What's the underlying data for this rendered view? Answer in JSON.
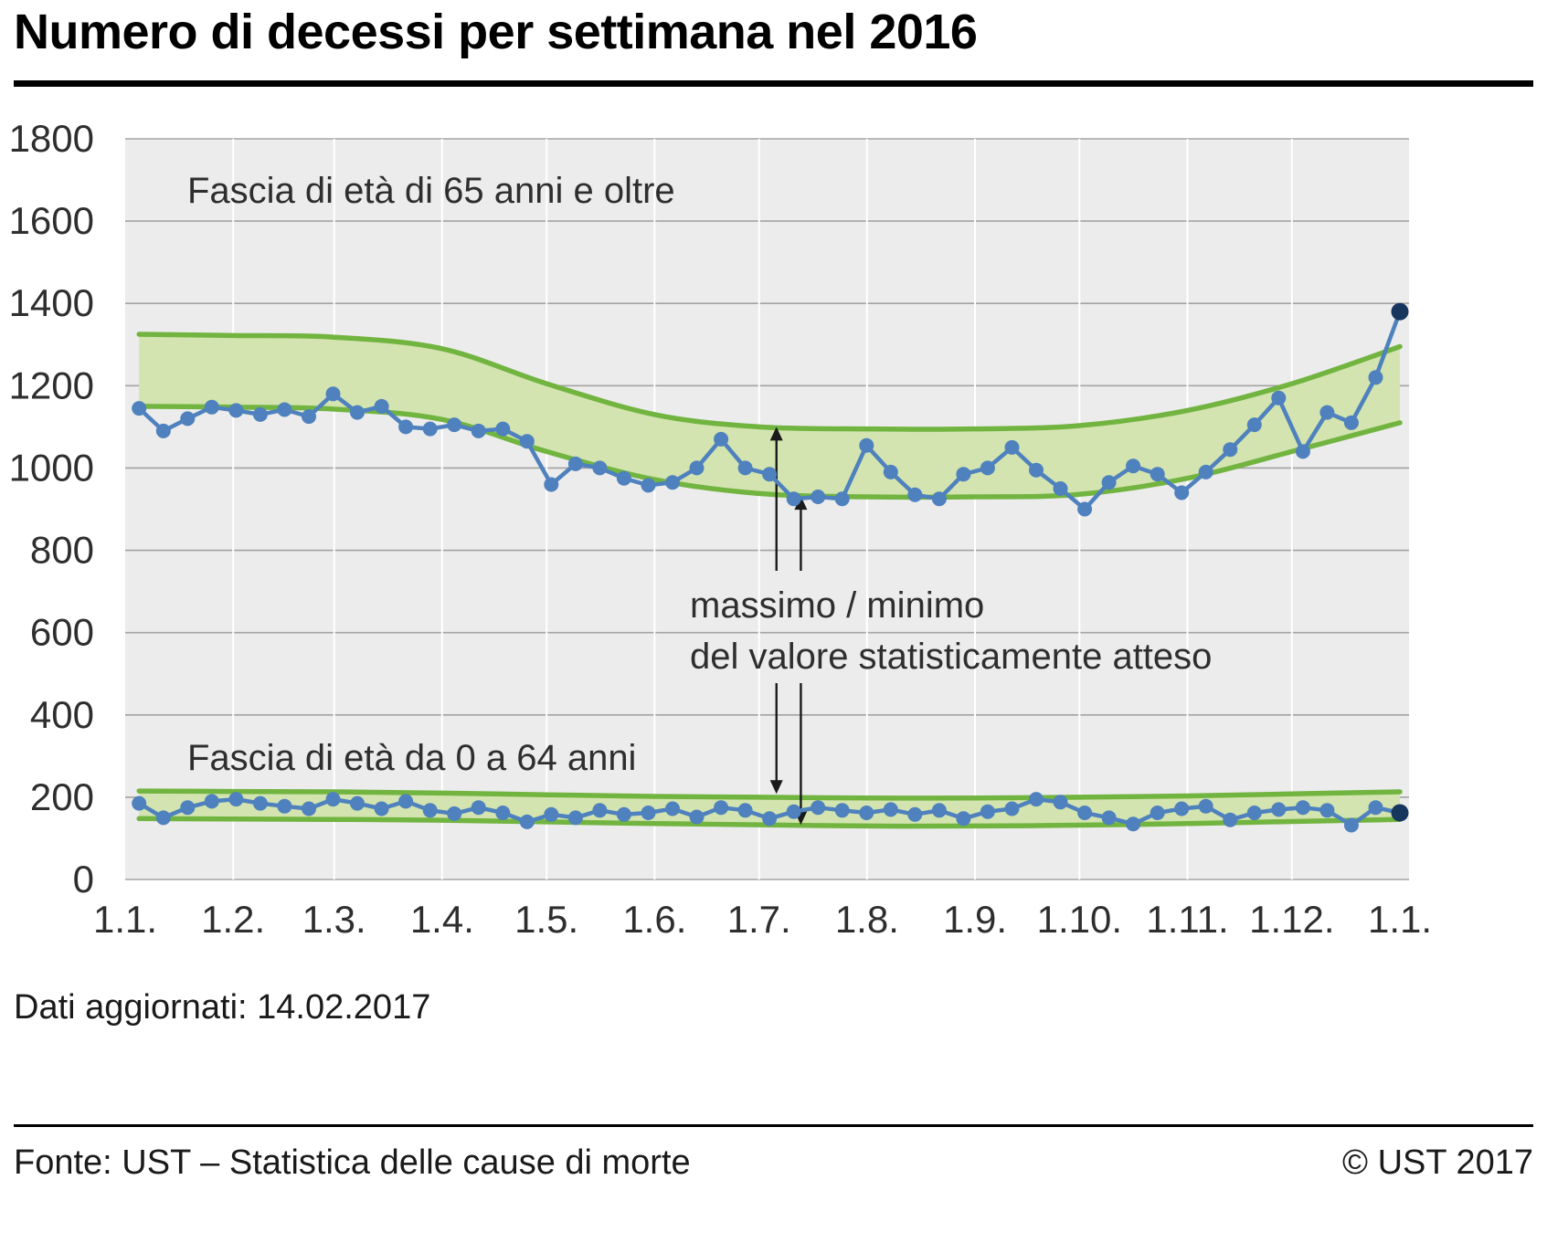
{
  "title": "Numero di decessi per settimana nel 2016",
  "updated_note": "Dati aggiornati: 14.02.2017",
  "footer": {
    "source": "Fonte: UST – Statistica delle cause di morte",
    "copyright": "© UST 2017"
  },
  "annotations": {
    "band_65_label": "Fascia di età di 65 anni e oltre",
    "band_064_label": "Fascia di età da 0 a 64 anni",
    "maxmin_line1": "massimo / minimo",
    "maxmin_line2": "del valore statisticamente atteso"
  },
  "colors": {
    "plot_bg": "#ececec",
    "grid": "#a3a3a3",
    "month_line": "#ffffff",
    "band_fill": "#d3e4b0",
    "band_edge": "#72b440",
    "line": "#4e81bd",
    "last_point": "#17365d",
    "text": "#2e2e2e",
    "arrow": "#1a1a1a"
  },
  "chart_data": {
    "type": "line",
    "title": "Numero di decessi per settimana nel 2016",
    "xlabel": "",
    "ylabel": "",
    "ylim": [
      0,
      1800
    ],
    "y_tick_step": 200,
    "grid": true,
    "legend": "none",
    "total_days": 366,
    "x_tick_labels": [
      "1.1.",
      "1.2.",
      "1.3.",
      "1.4.",
      "1.5.",
      "1.6.",
      "1.7.",
      "1.8.",
      "1.9.",
      "1.10.",
      "1.11.",
      "1.12.",
      "1.1."
    ],
    "x_tick_days": [
      0,
      31,
      60,
      91,
      121,
      152,
      182,
      213,
      244,
      274,
      305,
      335,
      366
    ],
    "series": [
      {
        "id": "65plus",
        "name": "Fascia di età di 65 anni e oltre",
        "start_day": 4,
        "end_day": 366,
        "values": [
          1145,
          1090,
          1120,
          1148,
          1140,
          1130,
          1142,
          1125,
          1180,
          1135,
          1150,
          1100,
          1095,
          1105,
          1090,
          1095,
          1065,
          960,
          1010,
          1000,
          975,
          958,
          965,
          1000,
          1070,
          1000,
          985,
          925,
          930,
          925,
          1055,
          990,
          935,
          925,
          985,
          1000,
          1050,
          995,
          950,
          900,
          965,
          1005,
          985,
          940,
          990,
          1045,
          1105,
          1170,
          1040,
          1135,
          1110,
          1220,
          1380
        ]
      },
      {
        "id": "0-64",
        "name": "Fascia di età da 0 a 64 anni",
        "start_day": 4,
        "end_day": 366,
        "values": [
          185,
          150,
          175,
          190,
          195,
          185,
          178,
          172,
          195,
          185,
          172,
          190,
          168,
          160,
          175,
          162,
          140,
          158,
          150,
          168,
          158,
          162,
          172,
          152,
          175,
          168,
          148,
          165,
          175,
          168,
          162,
          170,
          158,
          168,
          148,
          165,
          172,
          195,
          188,
          162,
          150,
          135,
          162,
          172,
          178,
          145,
          162,
          170,
          175,
          168,
          132,
          175,
          162
        ]
      }
    ],
    "bands": [
      {
        "id": "65plus",
        "name": "valore statisticamente atteso 65+",
        "x_days": [
          4,
          31,
          60,
          91,
          121,
          152,
          182,
          213,
          244,
          274,
          305,
          335,
          366
        ],
        "upper": [
          1325,
          1322,
          1318,
          1290,
          1205,
          1130,
          1100,
          1095,
          1095,
          1103,
          1140,
          1205,
          1295
        ],
        "lower": [
          1150,
          1148,
          1143,
          1118,
          1040,
          972,
          938,
          930,
          930,
          936,
          975,
          1040,
          1110
        ]
      },
      {
        "id": "0-64",
        "name": "valore statisticamente atteso 0-64",
        "x_days": [
          4,
          31,
          60,
          91,
          121,
          152,
          182,
          213,
          244,
          274,
          305,
          335,
          366
        ],
        "upper": [
          215,
          214,
          213,
          210,
          206,
          202,
          200,
          198,
          198,
          200,
          203,
          208,
          213
        ],
        "lower": [
          148,
          147,
          146,
          144,
          140,
          136,
          133,
          130,
          130,
          132,
          136,
          141,
          146
        ]
      }
    ],
    "arrows": [
      {
        "x_day": 187,
        "top_value": 1100,
        "bottom_value": 208
      },
      {
        "x_day": 194,
        "top_value": 932,
        "bottom_value": 133
      }
    ]
  }
}
